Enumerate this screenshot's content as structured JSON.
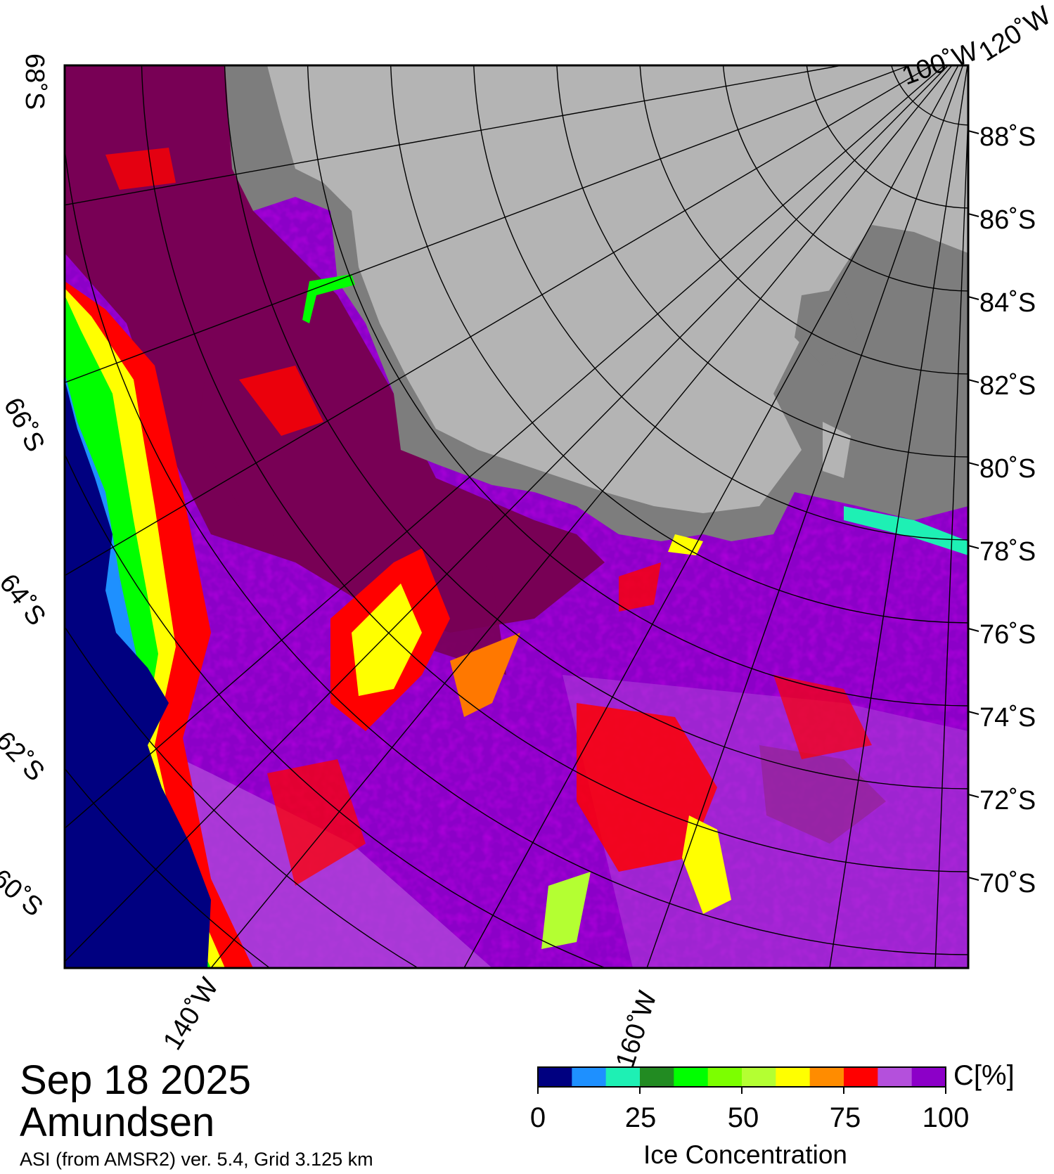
{
  "map": {
    "date": "Sep 18 2025",
    "region": "Amundsen",
    "source": "ASI (from AMSR2) ver. 5.4,  Grid 3.125 km",
    "colors": {
      "open_water": "#000080",
      "land_high": "#b4b4b4",
      "land_low": "#7d7d7d",
      "ice_full": "#780055",
      "ice_dark_purple": "#7800a0",
      "ice_mid_purple": "#8c00c8",
      "ice_light_purple": "#b450dc",
      "ice_red": "#ff0000",
      "ice_orange": "#ff7800",
      "ice_yellow": "#ffff00",
      "ice_yellowgreen": "#b4ff32",
      "ice_green": "#00ff00",
      "ice_cyan": "#00e6b4",
      "ice_blue": "#1e90ff"
    },
    "lat_labels_right": [
      "88˚S",
      "86˚S",
      "84˚S",
      "82˚S",
      "80˚S",
      "78˚S",
      "76˚S",
      "74˚S",
      "72˚S",
      "70˚S"
    ],
    "lat_labels_left": [
      "68˚S",
      "66˚S",
      "64˚S",
      "62˚S",
      "60˚S"
    ],
    "lon_labels": [
      "100˚W",
      "120˚W",
      "140˚W",
      "160˚W"
    ]
  },
  "colorbar": {
    "unit": "C[%]",
    "title": "Ice Concentration",
    "ticks": [
      "0",
      "25",
      "50",
      "75",
      "100"
    ],
    "colors": [
      "#000080",
      "#1e90ff",
      "#1ef0b4",
      "#228b22",
      "#00ff00",
      "#7cff00",
      "#b4ff32",
      "#ffff00",
      "#ff8c00",
      "#ff0000",
      "#b450dc",
      "#8c00c8"
    ]
  }
}
